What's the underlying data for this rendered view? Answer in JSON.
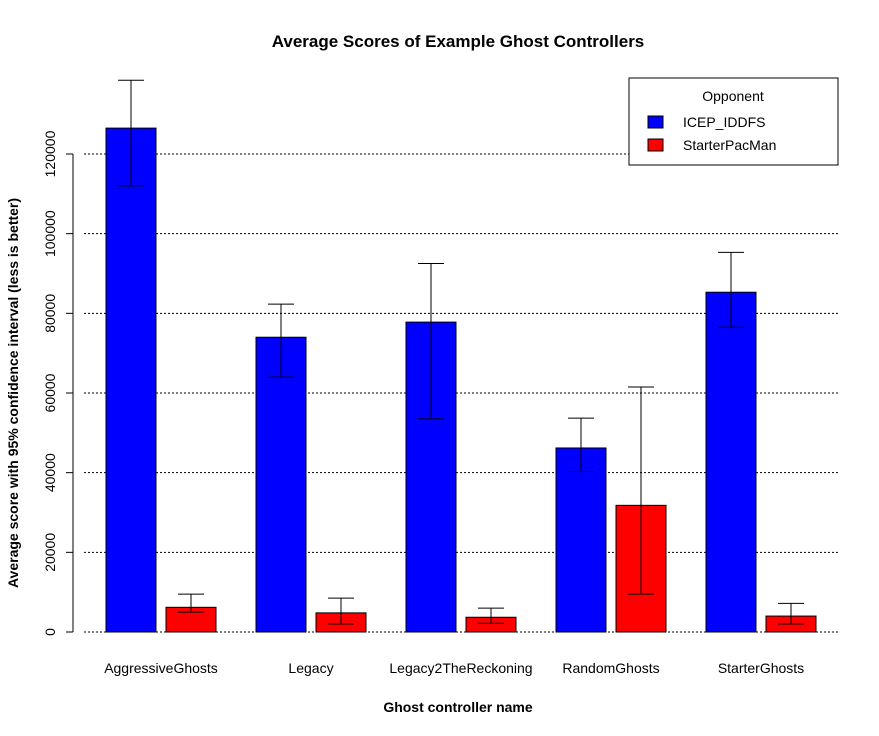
{
  "chart_data": {
    "type": "bar",
    "title": "Average Scores of Example Ghost Controllers",
    "xlabel": "Ghost controller name",
    "ylabel": "Average score with 95% confidence interval (less is better)",
    "ylim": [
      0,
      125000
    ],
    "yticks": [
      0,
      20000,
      40000,
      60000,
      80000,
      100000,
      120000
    ],
    "grid": "horizontal dotted",
    "legend": {
      "title": "Opponent",
      "placement": "top-right"
    },
    "categories": [
      "AggressiveGhosts",
      "Legacy",
      "Legacy2TheReckoning",
      "RandomGhosts",
      "StarterGhosts"
    ],
    "series": [
      {
        "name": "ICEP_IDDFS",
        "color": "#0000ff",
        "values": [
          126500,
          74000,
          77800,
          46200,
          85300
        ],
        "ci_low": [
          112000,
          64000,
          53500,
          40300,
          76500
        ],
        "ci_high": [
          138500,
          82300,
          92500,
          53700,
          95300
        ]
      },
      {
        "name": "StarterPacMan",
        "color": "#ff0000",
        "values": [
          6200,
          4800,
          3700,
          31800,
          4000
        ],
        "ci_low": [
          5000,
          2000,
          2200,
          9500,
          2000
        ],
        "ci_high": [
          9500,
          8500,
          6000,
          61500,
          7200
        ]
      }
    ]
  }
}
